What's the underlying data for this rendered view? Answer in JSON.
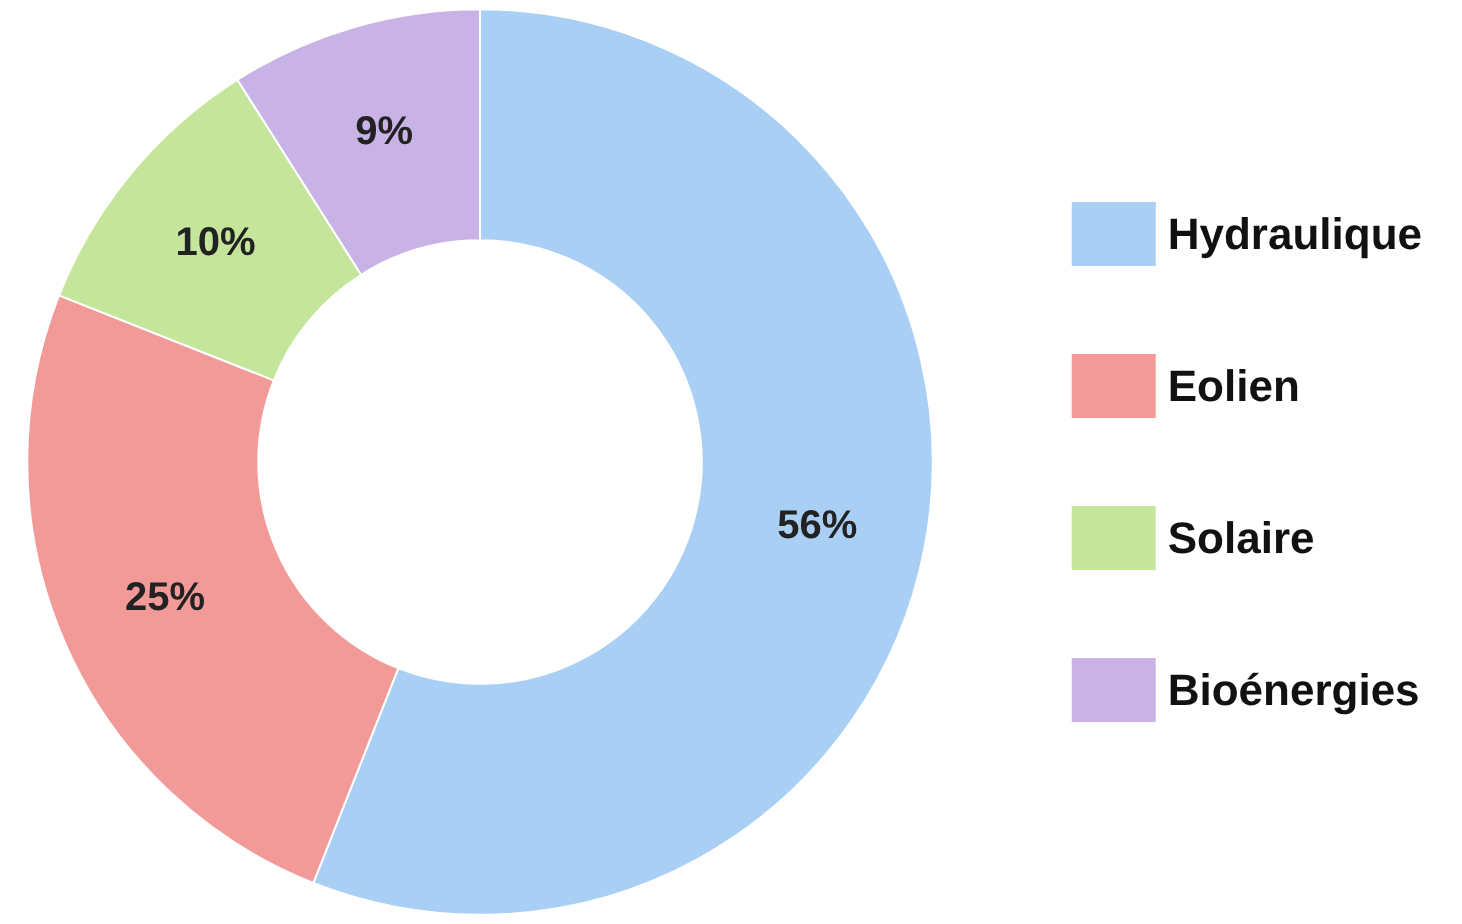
{
  "chart_data": {
    "type": "donut",
    "categories": [
      "Hydraulique",
      "Eolien",
      "Solaire",
      "Bioénergies"
    ],
    "values": [
      56,
      25,
      10,
      9
    ],
    "colors": [
      "#a9cff5",
      "#f29a98",
      "#c4e59a",
      "#c9b2e6"
    ],
    "value_labels": [
      "56%",
      "25%",
      "10%",
      "9%"
    ],
    "legend": "right"
  }
}
